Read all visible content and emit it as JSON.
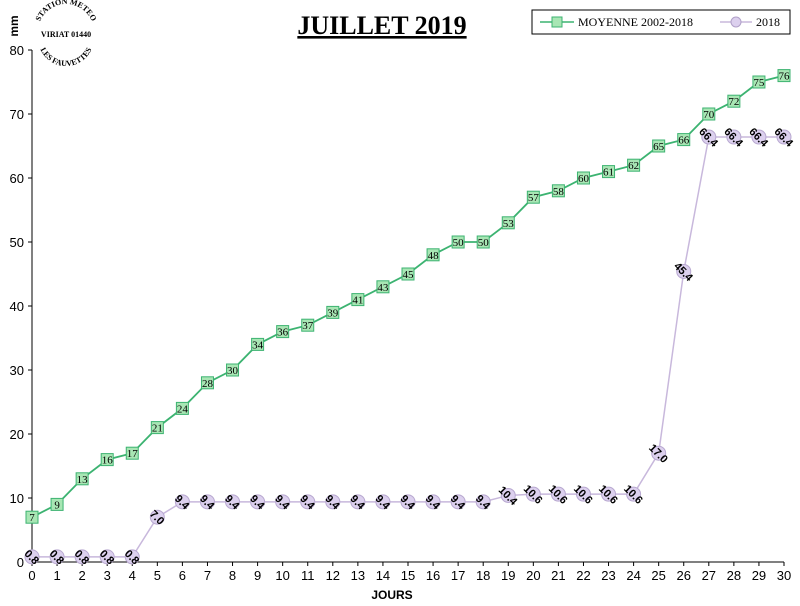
{
  "stamp": {
    "line1": "STATION METEO",
    "line2": "VIRIAT 01440",
    "line3": "LES FAUVETTES"
  },
  "chart_data": {
    "type": "line",
    "title": "JUILLET 2019",
    "xlabel": "JOURS",
    "ylabel": "mm",
    "xlim": [
      0,
      30
    ],
    "ylim": [
      0,
      80
    ],
    "yticks": [
      0,
      10,
      20,
      30,
      40,
      50,
      60,
      70,
      80
    ],
    "grid": false,
    "legend_position": "top-right",
    "x": [
      0,
      1,
      2,
      3,
      4,
      5,
      6,
      7,
      8,
      9,
      10,
      11,
      12,
      13,
      14,
      15,
      16,
      17,
      18,
      19,
      20,
      21,
      22,
      23,
      24,
      25,
      26,
      27,
      28,
      29,
      30
    ],
    "series": [
      {
        "name": "MOYENNE 2002-2018",
        "color": "#3cb371",
        "fill": "#a8e6b4",
        "marker": "square",
        "values": [
          7,
          9,
          13,
          16,
          17,
          21,
          24,
          28,
          30,
          34,
          36,
          37,
          39,
          41,
          43,
          45,
          48,
          50,
          50,
          53,
          57,
          58,
          60,
          61,
          62,
          65,
          66,
          70,
          72,
          75,
          76
        ],
        "labels": [
          "7",
          "9",
          "13",
          "16",
          "17",
          "21",
          "24",
          "28",
          "30",
          "34",
          "36",
          "37",
          "39",
          "41",
          "43",
          "45",
          "48",
          "50",
          "50",
          "53",
          "57",
          "58",
          "60",
          "61",
          "62",
          "65",
          "66",
          "70",
          "72",
          "75",
          "76"
        ]
      },
      {
        "name": "2018",
        "color": "#c8b8dc",
        "fill": "#dcd0ee",
        "marker": "circle",
        "values": [
          0.8,
          0.8,
          0.8,
          0.8,
          0.8,
          7.0,
          9.4,
          9.4,
          9.4,
          9.4,
          9.4,
          9.4,
          9.4,
          9.4,
          9.4,
          9.4,
          9.4,
          9.4,
          9.4,
          10.4,
          10.6,
          10.6,
          10.6,
          10.6,
          10.6,
          17.0,
          45.4,
          66.4,
          66.4,
          66.4,
          66.4
        ],
        "labels": [
          "0.8",
          "0.8",
          "0.8",
          "0.8",
          "0.8",
          "7.0",
          "9.4",
          "9.4",
          "9.4",
          "9.4",
          "9.4",
          "9.4",
          "9.4",
          "9.4",
          "9.4",
          "9.4",
          "9.4",
          "9.4",
          "9.4",
          "10.4",
          "10.6",
          "10.6",
          "10.6",
          "10.6",
          "10.6",
          "17.0",
          "45.4",
          "66.4",
          "66.4",
          "66.4",
          "66.4"
        ]
      }
    ]
  }
}
